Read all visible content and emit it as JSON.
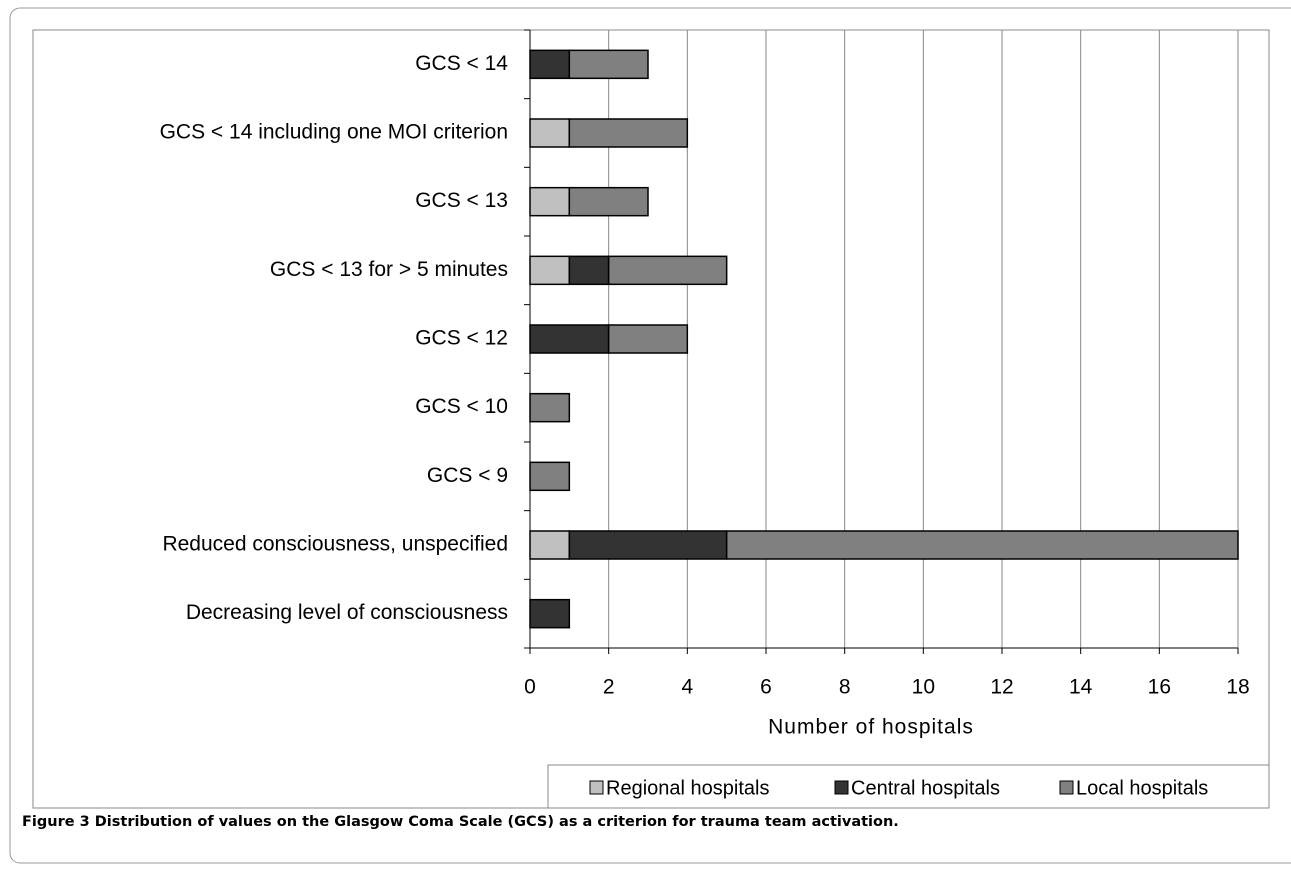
{
  "chart_data": {
    "type": "stacked_bar_horizontal",
    "caption": "Figure 3 Distribution of values on the Glasgow Coma Scale (GCS) as a criterion for trauma team activation.",
    "xlabel": "Number of hospitals",
    "categories": [
      "GCS < 14",
      "GCS < 14 including one MOI criterion",
      "GCS < 13",
      "GCS < 13 for > 5 minutes",
      "GCS < 12",
      "GCS < 10",
      "GCS < 9",
      "Reduced consciousness, unspecified",
      "Decreasing level of consciousness"
    ],
    "series": [
      {
        "name": "Regional hospitals",
        "color": "#c0c0c0",
        "values": [
          0,
          1,
          1,
          1,
          0,
          0,
          0,
          1,
          0
        ]
      },
      {
        "name": "Central hospitals",
        "color": "#333333",
        "values": [
          1,
          0,
          0,
          1,
          2,
          0,
          0,
          4,
          1
        ]
      },
      {
        "name": "Local hospitals",
        "color": "#808080",
        "values": [
          2,
          3,
          2,
          3,
          2,
          1,
          1,
          13,
          0
        ]
      }
    ],
    "xlim": [
      0,
      18
    ],
    "xticks": [
      0,
      2,
      4,
      6,
      8,
      10,
      12,
      14,
      16,
      18
    ],
    "grid": true,
    "legend": "bottom-right"
  }
}
